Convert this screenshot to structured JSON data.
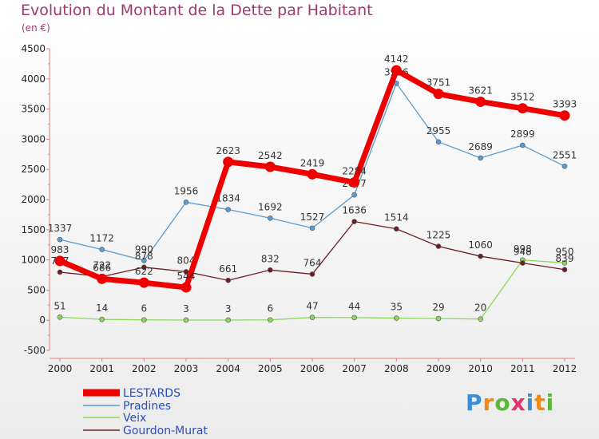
{
  "chart_data": {
    "type": "line",
    "title": "Evolution du Montant de la Dette par Habitant",
    "subtitle": "(en €)",
    "x": [
      "2000",
      "2001",
      "2002",
      "2003",
      "2004",
      "2005",
      "2006",
      "2007",
      "2008",
      "2009",
      "2010",
      "2011",
      "2012"
    ],
    "ylim": [
      -500,
      4500
    ],
    "yticks": [
      "-500",
      "0",
      "500",
      "1000",
      "1500",
      "2000",
      "2500",
      "3000",
      "3500",
      "4000",
      "4500"
    ],
    "grid": false,
    "legend": "bottom-left",
    "series": [
      {
        "name": "LESTARDS",
        "color": "#ee0000",
        "values": [
          983,
          686,
          622,
          544,
          2623,
          2542,
          2419,
          2284,
          4142,
          3751,
          3621,
          3512,
          3393
        ]
      },
      {
        "name": "Pradines",
        "color": "#5b9bd0",
        "values": [
          1337,
          1172,
          990,
          1956,
          1834,
          1692,
          1527,
          2077,
          3926,
          2955,
          2689,
          2899,
          2551
        ]
      },
      {
        "name": "Veix",
        "color": "#8cd65a",
        "values": [
          51,
          14,
          6,
          3,
          3,
          6,
          47,
          44,
          35,
          29,
          20,
          998,
          950
        ]
      },
      {
        "name": "Gourdon-Murat",
        "color": "#6b1f24",
        "values": [
          797,
          722,
          878,
          804,
          661,
          832,
          764,
          1636,
          1514,
          1225,
          1060,
          948,
          839
        ]
      }
    ]
  },
  "logo": {
    "text": "Proxiti"
  }
}
